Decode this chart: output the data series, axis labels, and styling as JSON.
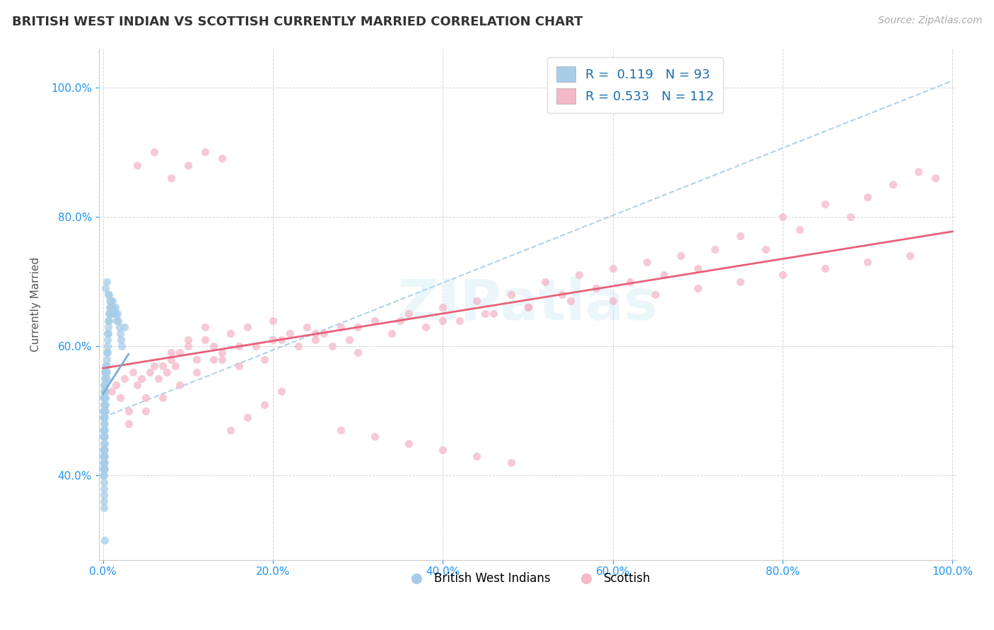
{
  "title": "BRITISH WEST INDIAN VS SCOTTISH CURRENTLY MARRIED CORRELATION CHART",
  "source_text": "Source: ZipAtlas.com",
  "ylabel": "Currently Married",
  "xlim": [
    -0.005,
    1.005
  ],
  "ylim": [
    0.27,
    1.06
  ],
  "xticks": [
    0.0,
    0.2,
    0.4,
    0.6,
    0.8,
    1.0
  ],
  "yticks": [
    0.4,
    0.6,
    0.8,
    1.0
  ],
  "xtick_labels": [
    "0.0%",
    "20.0%",
    "40.0%",
    "60.0%",
    "80.0%",
    "100.0%"
  ],
  "ytick_labels": [
    "40.0%",
    "60.0%",
    "80.0%",
    "100.0%"
  ],
  "watermark": "ZIPatlas",
  "legend_R1": "0.119",
  "legend_N1": "93",
  "legend_R2": "0.533",
  "legend_N2": "112",
  "blue_color": "#a8cde8",
  "pink_color": "#f4b8c8",
  "blue_line_color": "#7aaed6",
  "pink_line_color": "#e8607a",
  "dashed_line_color": "#a8cde8",
  "title_fontsize": 13,
  "bwi_x": [
    0.0005,
    0.0005,
    0.0005,
    0.0005,
    0.0005,
    0.0005,
    0.0005,
    0.0005,
    0.0005,
    0.0005,
    0.001,
    0.001,
    0.001,
    0.001,
    0.001,
    0.001,
    0.001,
    0.001,
    0.001,
    0.001,
    0.001,
    0.001,
    0.001,
    0.001,
    0.001,
    0.001,
    0.001,
    0.001,
    0.001,
    0.001,
    0.002,
    0.002,
    0.002,
    0.002,
    0.002,
    0.002,
    0.002,
    0.002,
    0.002,
    0.002,
    0.002,
    0.002,
    0.002,
    0.002,
    0.002,
    0.002,
    0.002,
    0.003,
    0.003,
    0.003,
    0.003,
    0.003,
    0.003,
    0.003,
    0.003,
    0.004,
    0.004,
    0.004,
    0.004,
    0.004,
    0.005,
    0.005,
    0.005,
    0.005,
    0.006,
    0.006,
    0.006,
    0.007,
    0.007,
    0.008,
    0.008,
    0.009,
    0.01,
    0.01,
    0.011,
    0.012,
    0.013,
    0.014,
    0.015,
    0.016,
    0.017,
    0.018,
    0.019,
    0.02,
    0.021,
    0.022,
    0.006,
    0.004,
    0.003,
    0.007,
    0.008,
    0.009,
    0.025
  ],
  "bwi_y": [
    0.52,
    0.5,
    0.49,
    0.47,
    0.46,
    0.44,
    0.43,
    0.42,
    0.41,
    0.4,
    0.54,
    0.53,
    0.52,
    0.51,
    0.5,
    0.49,
    0.48,
    0.47,
    0.46,
    0.45,
    0.44,
    0.43,
    0.42,
    0.41,
    0.4,
    0.39,
    0.38,
    0.37,
    0.36,
    0.35,
    0.56,
    0.55,
    0.54,
    0.53,
    0.52,
    0.51,
    0.5,
    0.49,
    0.48,
    0.47,
    0.46,
    0.45,
    0.44,
    0.43,
    0.42,
    0.41,
    0.3,
    0.57,
    0.56,
    0.55,
    0.54,
    0.53,
    0.52,
    0.51,
    0.5,
    0.59,
    0.58,
    0.57,
    0.56,
    0.55,
    0.62,
    0.61,
    0.6,
    0.59,
    0.64,
    0.63,
    0.62,
    0.65,
    0.64,
    0.66,
    0.65,
    0.67,
    0.66,
    0.65,
    0.67,
    0.66,
    0.65,
    0.66,
    0.65,
    0.64,
    0.65,
    0.64,
    0.63,
    0.62,
    0.61,
    0.6,
    0.68,
    0.7,
    0.69,
    0.68,
    0.67,
    0.66,
    0.63
  ],
  "scottish_x": [
    0.01,
    0.015,
    0.02,
    0.025,
    0.03,
    0.035,
    0.04,
    0.045,
    0.05,
    0.055,
    0.06,
    0.065,
    0.07,
    0.075,
    0.08,
    0.085,
    0.09,
    0.1,
    0.11,
    0.12,
    0.13,
    0.14,
    0.15,
    0.16,
    0.17,
    0.18,
    0.19,
    0.2,
    0.21,
    0.22,
    0.23,
    0.24,
    0.25,
    0.26,
    0.27,
    0.28,
    0.29,
    0.3,
    0.32,
    0.34,
    0.36,
    0.38,
    0.4,
    0.42,
    0.44,
    0.46,
    0.48,
    0.5,
    0.52,
    0.54,
    0.56,
    0.58,
    0.6,
    0.62,
    0.64,
    0.66,
    0.68,
    0.7,
    0.72,
    0.75,
    0.78,
    0.8,
    0.82,
    0.85,
    0.88,
    0.9,
    0.93,
    0.96,
    0.98,
    0.03,
    0.05,
    0.07,
    0.09,
    0.11,
    0.13,
    0.15,
    0.17,
    0.19,
    0.21,
    0.08,
    0.1,
    0.12,
    0.14,
    0.16,
    0.2,
    0.25,
    0.3,
    0.35,
    0.4,
    0.45,
    0.5,
    0.55,
    0.6,
    0.65,
    0.7,
    0.75,
    0.8,
    0.85,
    0.9,
    0.95,
    0.04,
    0.06,
    0.08,
    0.1,
    0.12,
    0.14,
    0.28,
    0.32,
    0.36,
    0.4,
    0.44,
    0.48
  ],
  "scottish_y": [
    0.53,
    0.54,
    0.52,
    0.55,
    0.5,
    0.56,
    0.54,
    0.55,
    0.52,
    0.56,
    0.57,
    0.55,
    0.57,
    0.56,
    0.58,
    0.57,
    0.59,
    0.61,
    0.58,
    0.63,
    0.6,
    0.58,
    0.62,
    0.57,
    0.63,
    0.6,
    0.58,
    0.64,
    0.61,
    0.62,
    0.6,
    0.63,
    0.61,
    0.62,
    0.6,
    0.63,
    0.61,
    0.59,
    0.64,
    0.62,
    0.65,
    0.63,
    0.66,
    0.64,
    0.67,
    0.65,
    0.68,
    0.66,
    0.7,
    0.68,
    0.71,
    0.69,
    0.72,
    0.7,
    0.73,
    0.71,
    0.74,
    0.72,
    0.75,
    0.77,
    0.75,
    0.8,
    0.78,
    0.82,
    0.8,
    0.83,
    0.85,
    0.87,
    0.86,
    0.48,
    0.5,
    0.52,
    0.54,
    0.56,
    0.58,
    0.47,
    0.49,
    0.51,
    0.53,
    0.59,
    0.6,
    0.61,
    0.59,
    0.6,
    0.61,
    0.62,
    0.63,
    0.64,
    0.64,
    0.65,
    0.66,
    0.67,
    0.67,
    0.68,
    0.69,
    0.7,
    0.71,
    0.72,
    0.73,
    0.74,
    0.88,
    0.9,
    0.86,
    0.88,
    0.9,
    0.89,
    0.47,
    0.46,
    0.45,
    0.44,
    0.43,
    0.42
  ]
}
